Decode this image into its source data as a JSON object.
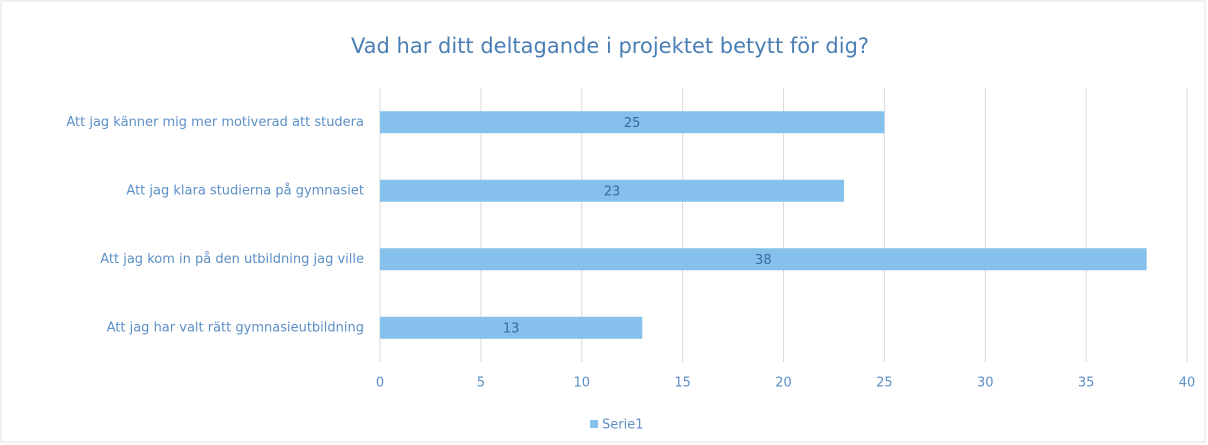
{
  "chart_data": {
    "type": "bar",
    "orientation": "horizontal",
    "title": "Vad har ditt deltagande i projektet betytt för dig?",
    "categories": [
      "Att jag känner mig mer motiverad att studera",
      "Att jag klara studierna på gymnasiet",
      "Att jag kom in på den utbildning jag ville",
      "Att jag har valt rätt gymnasieutbildning"
    ],
    "series": [
      {
        "name": "Serie1",
        "color": "#85c1ec",
        "values": [
          25,
          23,
          38,
          13
        ]
      }
    ],
    "xlim": [
      0,
      40
    ],
    "xticks": [
      0,
      5,
      10,
      15,
      20,
      25,
      30,
      35,
      40
    ],
    "grid": true,
    "legend": "bottom",
    "data_labels": true
  }
}
